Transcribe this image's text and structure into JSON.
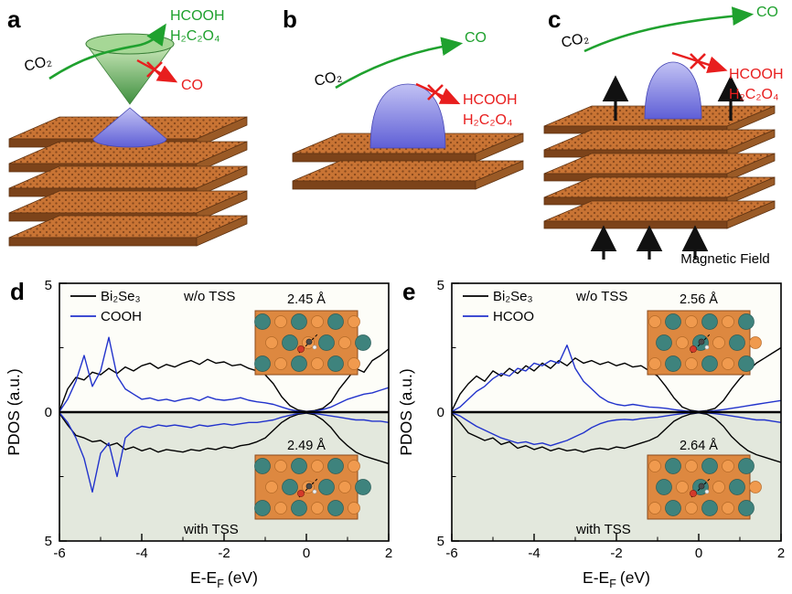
{
  "colors": {
    "green": "#1fa12e",
    "red": "#e81e1e",
    "blue": "#2233cc",
    "black": "#000000",
    "slab_orange": "#c97434",
    "inset_bg": "#dd8840",
    "lower_half_bg": "#e3e8dd"
  },
  "panels": {
    "a": {
      "label": "a",
      "reactant": "CO₂",
      "allowed_line1": "HCOOH",
      "allowed_line2": "H₂C₂O₄",
      "blocked_line1": "CO"
    },
    "b": {
      "label": "b",
      "reactant": "CO₂",
      "allowed_line1": "CO",
      "blocked_line1": "HCOOH",
      "blocked_line2": "H₂C₂O₄"
    },
    "c": {
      "label": "c",
      "reactant": "CO₂",
      "allowed_line1": "CO",
      "blocked_line1": "HCOOH",
      "blocked_line2": "H₂C₂O₄",
      "field_label": "Magnetic Field"
    },
    "d": {
      "label": "d"
    },
    "e": {
      "label": "e"
    }
  },
  "chart_data": [
    {
      "type": "line",
      "panel": "d",
      "title": "",
      "xlabel": "E-E_F (eV)",
      "xlabel_parts": {
        "main": "E-E",
        "sub": "F",
        "unit": "(eV)"
      },
      "ylabel": "PDOS (a.u.)",
      "xlim": [
        -6,
        2
      ],
      "ylim": [
        -5,
        5
      ],
      "x_start": -6,
      "x_step": 0.2,
      "xticks": [
        -6,
        -4,
        -2,
        0,
        2
      ],
      "xtick_labels": [
        "-6",
        "-4",
        "-2",
        "0",
        "2"
      ],
      "ytick_labels": [
        "5",
        "0",
        "5"
      ],
      "grid": false,
      "legend_position": "top-left",
      "legend": [
        {
          "name": "Bi₂Se₃",
          "color": "#000000"
        },
        {
          "name": "COOH",
          "color": "#2233cc"
        }
      ],
      "annotations": {
        "upper": "w/o TSS",
        "lower": "with TSS",
        "dist_upper": "2.45 Å",
        "dist_lower": "2.49 Å"
      },
      "series": [
        {
          "name": "Bi2Se3 w/o TSS",
          "color": "#000000",
          "values": [
            0.05,
            0.9,
            1.35,
            1.25,
            1.55,
            1.45,
            1.7,
            1.5,
            1.75,
            1.6,
            1.8,
            1.9,
            1.7,
            1.85,
            1.75,
            1.9,
            2.0,
            1.85,
            2.05,
            1.9,
            1.95,
            1.8,
            1.85,
            1.7,
            1.6,
            1.45,
            1.1,
            0.6,
            0.25,
            0.08,
            0.03,
            0.06,
            0.15,
            0.4,
            0.9,
            1.3,
            1.7,
            1.55,
            2.0,
            2.2,
            2.45
          ]
        },
        {
          "name": "COOH w/o TSS",
          "color": "#2233cc",
          "values": [
            0.02,
            0.5,
            1.2,
            2.2,
            1.0,
            1.6,
            2.9,
            1.4,
            0.9,
            0.7,
            0.5,
            0.55,
            0.45,
            0.5,
            0.42,
            0.5,
            0.55,
            0.45,
            0.6,
            0.5,
            0.46,
            0.5,
            0.56,
            0.46,
            0.4,
            0.36,
            0.3,
            0.2,
            0.1,
            0.04,
            0.02,
            0.04,
            0.1,
            0.2,
            0.35,
            0.5,
            0.6,
            0.7,
            0.75,
            0.85,
            0.95
          ]
        },
        {
          "name": "Bi2Se3 with TSS",
          "color": "#000000",
          "values": [
            -0.05,
            -0.5,
            -0.9,
            -1.0,
            -1.15,
            -1.1,
            -1.3,
            -1.2,
            -1.45,
            -1.35,
            -1.5,
            -1.4,
            -1.55,
            -1.45,
            -1.5,
            -1.55,
            -1.45,
            -1.5,
            -1.4,
            -1.45,
            -1.35,
            -1.4,
            -1.3,
            -1.25,
            -1.15,
            -1.0,
            -0.7,
            -0.4,
            -0.2,
            -0.08,
            -0.04,
            -0.1,
            -0.3,
            -0.6,
            -1.0,
            -1.3,
            -1.55,
            -1.7,
            -1.8,
            -1.9,
            -2.0
          ]
        },
        {
          "name": "COOH with TSS",
          "color": "#2233cc",
          "values": [
            -0.02,
            -0.4,
            -1.0,
            -1.8,
            -3.1,
            -1.6,
            -1.2,
            -2.5,
            -1.0,
            -0.7,
            -0.55,
            -0.6,
            -0.5,
            -0.55,
            -0.5,
            -0.55,
            -0.6,
            -0.5,
            -0.55,
            -0.5,
            -0.45,
            -0.5,
            -0.45,
            -0.4,
            -0.4,
            -0.35,
            -0.3,
            -0.2,
            -0.12,
            -0.05,
            -0.02,
            -0.05,
            -0.1,
            -0.15,
            -0.2,
            -0.25,
            -0.3,
            -0.3,
            -0.35,
            -0.35,
            -0.4
          ]
        }
      ]
    },
    {
      "type": "line",
      "panel": "e",
      "title": "",
      "xlabel": "E-E_F (eV)",
      "xlabel_parts": {
        "main": "E-E",
        "sub": "F",
        "unit": "(eV)"
      },
      "ylabel": "PDOS (a.u.)",
      "xlim": [
        -6,
        2
      ],
      "ylim": [
        -5,
        5
      ],
      "x_start": -6,
      "x_step": 0.2,
      "xticks": [
        -6,
        -4,
        -2,
        0,
        2
      ],
      "xtick_labels": [
        "-6",
        "-4",
        "-2",
        "0",
        "2"
      ],
      "ytick_labels": [
        "5",
        "0",
        "5"
      ],
      "grid": false,
      "legend_position": "top-left",
      "legend": [
        {
          "name": "Bi₂Se₃",
          "color": "#000000"
        },
        {
          "name": "HCOO",
          "color": "#2233cc"
        }
      ],
      "annotations": {
        "upper": "w/o TSS",
        "lower": "with TSS",
        "dist_upper": "2.56 Å",
        "dist_lower": "2.64 Å"
      },
      "series": [
        {
          "name": "Bi2Se3 w/o TSS",
          "color": "#000000",
          "values": [
            0.05,
            0.7,
            1.1,
            1.4,
            1.2,
            1.6,
            1.4,
            1.7,
            1.5,
            1.8,
            1.6,
            1.9,
            1.7,
            2.0,
            1.8,
            2.1,
            1.9,
            2.0,
            1.85,
            1.95,
            1.8,
            1.9,
            1.75,
            1.8,
            1.6,
            1.4,
            1.0,
            0.55,
            0.2,
            0.07,
            0.03,
            0.06,
            0.15,
            0.45,
            0.9,
            1.3,
            1.6,
            1.9,
            2.1,
            2.3,
            2.5
          ]
        },
        {
          "name": "HCOO w/o TSS",
          "color": "#2233cc",
          "values": [
            0.02,
            0.2,
            0.5,
            0.8,
            1.0,
            1.3,
            1.5,
            1.4,
            1.7,
            1.6,
            1.9,
            1.8,
            2.0,
            1.9,
            2.6,
            1.7,
            1.2,
            0.9,
            0.6,
            0.4,
            0.3,
            0.25,
            0.3,
            0.25,
            0.2,
            0.18,
            0.15,
            0.1,
            0.06,
            0.03,
            0.02,
            0.03,
            0.06,
            0.1,
            0.15,
            0.2,
            0.25,
            0.3,
            0.35,
            0.4,
            0.45
          ]
        },
        {
          "name": "Bi2Se3 with TSS",
          "color": "#000000",
          "values": [
            -0.05,
            -0.4,
            -0.8,
            -0.95,
            -1.1,
            -1.0,
            -1.25,
            -1.15,
            -1.4,
            -1.3,
            -1.45,
            -1.35,
            -1.5,
            -1.4,
            -1.5,
            -1.45,
            -1.55,
            -1.45,
            -1.4,
            -1.45,
            -1.35,
            -1.4,
            -1.3,
            -1.2,
            -1.1,
            -0.95,
            -0.65,
            -0.35,
            -0.18,
            -0.07,
            -0.03,
            -0.08,
            -0.25,
            -0.55,
            -0.95,
            -1.25,
            -1.5,
            -1.65,
            -1.75,
            -1.85,
            -1.95
          ]
        },
        {
          "name": "HCOO with TSS",
          "color": "#2233cc",
          "values": [
            -0.02,
            -0.15,
            -0.35,
            -0.55,
            -0.7,
            -0.85,
            -1.0,
            -1.1,
            -1.2,
            -1.15,
            -1.25,
            -1.2,
            -1.3,
            -1.2,
            -1.1,
            -0.95,
            -0.8,
            -0.6,
            -0.45,
            -0.35,
            -0.3,
            -0.28,
            -0.3,
            -0.25,
            -0.22,
            -0.2,
            -0.15,
            -0.1,
            -0.06,
            -0.03,
            -0.02,
            -0.03,
            -0.06,
            -0.1,
            -0.15,
            -0.2,
            -0.25,
            -0.3,
            -0.3,
            -0.35,
            -0.4
          ]
        }
      ]
    }
  ]
}
